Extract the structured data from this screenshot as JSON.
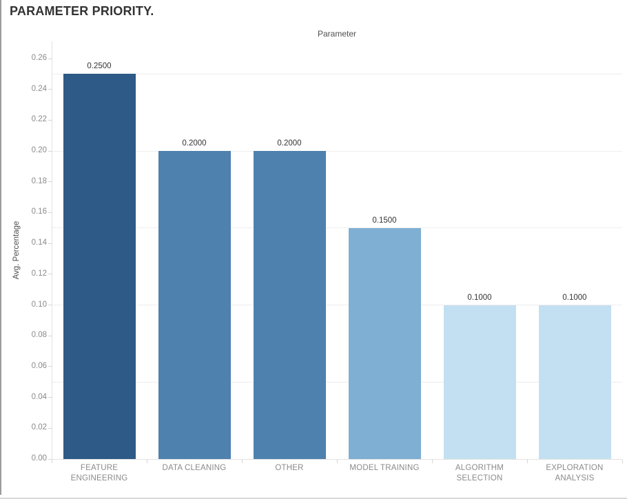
{
  "page": {
    "title": "PARAMETER PRIORITY."
  },
  "chart_data": {
    "type": "bar",
    "title": "Parameter",
    "xlabel": "",
    "ylabel": "Avg. Percentage",
    "categories": [
      "FEATURE ENGINEERING",
      "DATA CLEANING",
      "OTHER",
      "MODEL TRAINING",
      "ALGORITHM SELECTION",
      "EXPLORATION ANALYSIS"
    ],
    "categories_display": [
      [
        "FEATURE ENGINEERING"
      ],
      [
        "DATA CLEANING"
      ],
      [
        "OTHER"
      ],
      [
        "MODEL TRAINING"
      ],
      [
        "ALGORITHM SELECTION"
      ],
      [
        "EXPLORATION",
        "ANALYSIS"
      ]
    ],
    "values": [
      0.25,
      0.2,
      0.2,
      0.15,
      0.1,
      0.1
    ],
    "bar_labels": [
      "0.2500",
      "0.2000",
      "0.2000",
      "0.1500",
      "0.1000",
      "0.1000"
    ],
    "bar_colors": [
      "#2d5a87",
      "#4e81ae",
      "#4e81ae",
      "#7fafd3",
      "#c3e0f2",
      "#c3e0f2"
    ],
    "ylim": [
      0,
      0.26
    ],
    "ytick_step": 0.02,
    "grid_step": 0.05,
    "grid": true,
    "legend": "none",
    "colors": {
      "grid": "#ededed",
      "axis_line": "#e2e2e2",
      "tick": "#d4d4d4",
      "tick_label": "#8a8a8a",
      "bar_label": "#333333"
    }
  }
}
